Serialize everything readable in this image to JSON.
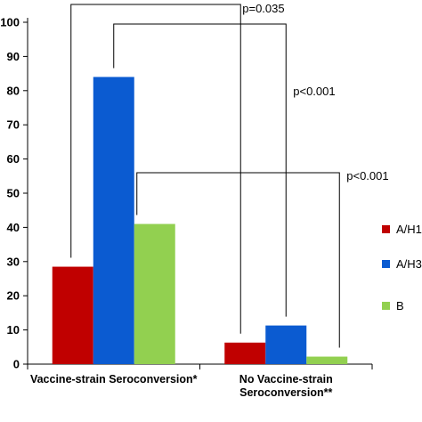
{
  "chart_data": {
    "type": "bar",
    "categories": [
      [
        "Vaccine-strain Seroconversion*"
      ],
      [
        "No Vaccine-strain",
        "Seroconversion**"
      ]
    ],
    "series": [
      {
        "name": "A/H1",
        "color": "#c00000",
        "values": [
          28.5,
          6.3
        ]
      },
      {
        "name": "A/H3",
        "color": "#0b5bd1",
        "values": [
          84,
          11.3
        ]
      },
      {
        "name": "B",
        "color": "#92d050",
        "values": [
          41,
          2.2
        ]
      }
    ],
    "ylim": [
      0,
      100
    ],
    "yticks": [
      0,
      10,
      20,
      30,
      40,
      50,
      60,
      70,
      80,
      90,
      100
    ],
    "legend_position": "right",
    "annotations": [
      {
        "text": "p=0.035",
        "series": "A/H1"
      },
      {
        "text": "p<0.001",
        "series": "A/H3"
      },
      {
        "text": "p<0.001",
        "series": "B"
      }
    ]
  }
}
